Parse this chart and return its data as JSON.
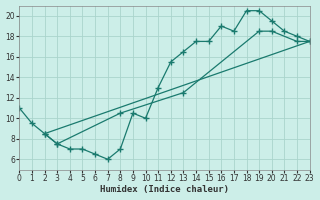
{
  "xlabel": "Humidex (Indice chaleur)",
  "bg_color": "#cceee8",
  "line_color": "#1a7a6e",
  "grid_color": "#aad4cc",
  "xlim": [
    0,
    23
  ],
  "ylim": [
    5,
    21
  ],
  "xticks": [
    0,
    1,
    2,
    3,
    4,
    5,
    6,
    7,
    8,
    9,
    10,
    11,
    12,
    13,
    14,
    15,
    16,
    17,
    18,
    19,
    20,
    21,
    22,
    23
  ],
  "yticks": [
    6,
    8,
    10,
    12,
    14,
    16,
    18,
    20
  ],
  "line1_x": [
    0,
    1,
    2,
    3,
    4,
    5,
    6,
    7,
    8,
    9,
    10,
    11,
    12,
    13,
    14,
    15,
    16,
    17,
    18,
    19,
    20,
    21,
    22,
    23
  ],
  "line1_y": [
    11,
    9.5,
    8.5,
    7.5,
    7.0,
    7.0,
    6.5,
    6.0,
    7.0,
    10.5,
    10.0,
    13.0,
    15.5,
    16.5,
    17.5,
    17.5,
    19.0,
    18.5,
    20.5,
    20.5,
    19.5,
    18.5,
    18.0,
    17.5
  ],
  "line2_x": [
    2,
    3,
    8,
    13,
    19,
    20,
    22,
    23
  ],
  "line2_y": [
    8.5,
    7.5,
    10.5,
    12.5,
    18.5,
    18.5,
    17.5,
    17.5
  ],
  "line3_x": [
    2,
    23
  ],
  "line3_y": [
    8.5,
    17.5
  ]
}
